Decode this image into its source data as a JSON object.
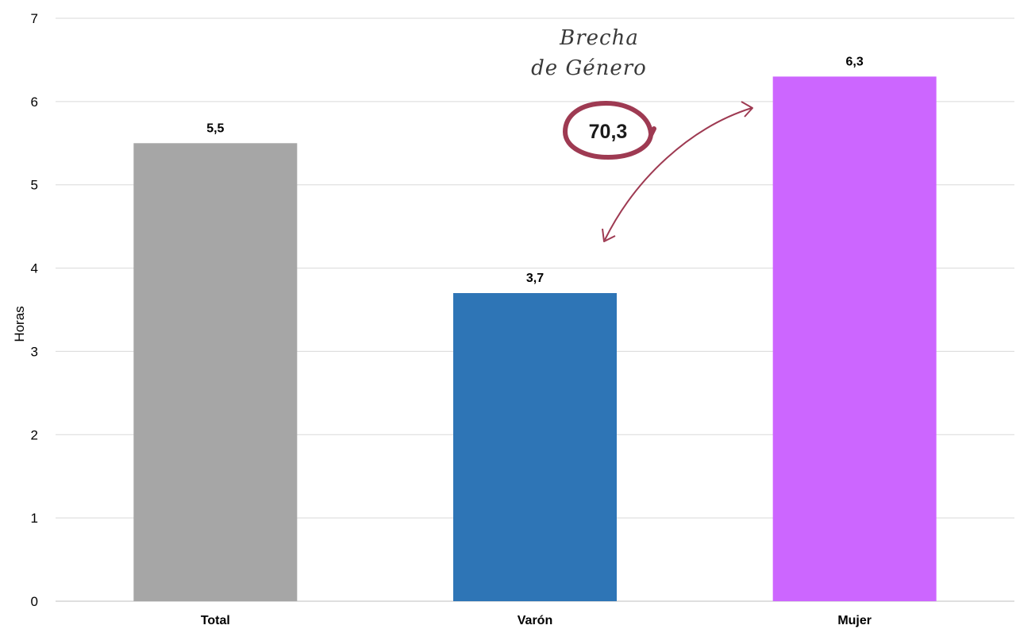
{
  "chart_data": {
    "type": "bar",
    "categories": [
      "Total",
      "Varón",
      "Mujer"
    ],
    "values": [
      5.5,
      3.7,
      6.3
    ],
    "value_labels": [
      "5,5",
      "3,7",
      "6,3"
    ],
    "bar_colors": [
      "#a6a6a6",
      "#2e75b6",
      "#cc66ff"
    ],
    "title": "",
    "xlabel": "",
    "ylabel": "Horas",
    "ylim": [
      0,
      7
    ],
    "yticks": [
      0,
      1,
      2,
      3,
      4,
      5,
      6,
      7
    ],
    "grid": true,
    "legend": "none",
    "annotation": {
      "line1": "Brecha",
      "line2": "de Género",
      "value": "70,3",
      "color": "#9e3a52"
    }
  }
}
